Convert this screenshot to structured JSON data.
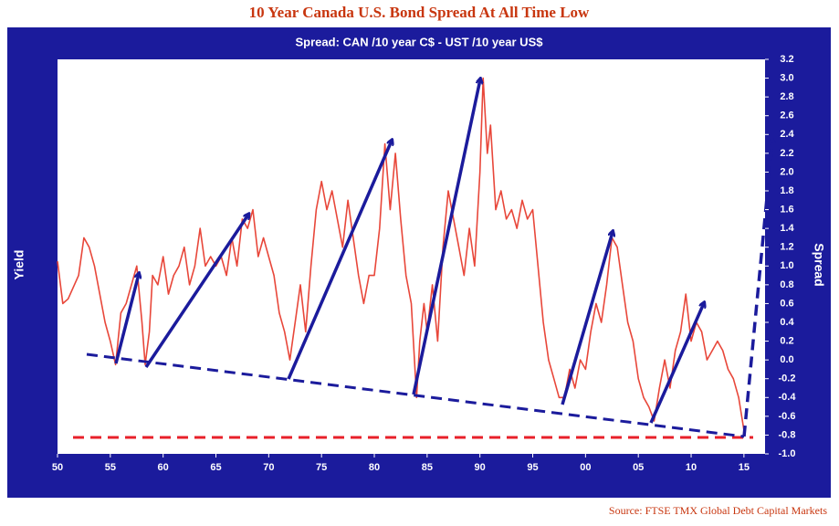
{
  "chart_data": {
    "type": "line",
    "title": "10 Year Canada U.S. Bond Spread At All Time Low",
    "subtitle": "Spread: CAN /10 year C$  -  UST /10 year US$",
    "y_label": "Yield",
    "y2_label": "Spread",
    "source": "Source: FTSE TMX Global Debt Capital Markets",
    "x": [
      1950,
      1950.5,
      1951,
      1952,
      1952.5,
      1953,
      1953.5,
      1954,
      1954.5,
      1955,
      1955.5,
      1956,
      1956.5,
      1957,
      1957.5,
      1958,
      1958.3,
      1958.7,
      1959,
      1959.5,
      1960,
      1960.5,
      1961,
      1961.5,
      1962,
      1962.5,
      1963,
      1963.5,
      1964,
      1964.5,
      1965,
      1965.5,
      1966,
      1966.5,
      1967,
      1967.5,
      1968,
      1968.5,
      1969,
      1969.5,
      1970,
      1970.5,
      1971,
      1971.5,
      1972,
      1972.5,
      1973,
      1973.5,
      1974,
      1974.5,
      1975,
      1975.5,
      1976,
      1976.5,
      1977,
      1977.5,
      1978,
      1978.5,
      1979,
      1979.5,
      1980,
      1980.5,
      1981,
      1981.5,
      1982,
      1982.5,
      1983,
      1983.5,
      1984,
      1984.3,
      1984.7,
      1985,
      1985.5,
      1986,
      1986.5,
      1987,
      1987.5,
      1988,
      1988.5,
      1989,
      1989.5,
      1990,
      1990.3,
      1990.7,
      1991,
      1991.5,
      1992,
      1992.5,
      1993,
      1993.5,
      1994,
      1994.5,
      1995,
      1995.5,
      1996,
      1996.5,
      1997,
      1997.5,
      1998,
      1998.5,
      1999,
      1999.5,
      2000,
      2000.5,
      2001,
      2001.5,
      2002,
      2002.5,
      2003,
      2003.5,
      2004,
      2004.5,
      2005,
      2005.5,
      2006,
      2006.5,
      2007,
      2007.5,
      2008,
      2008.5,
      2009,
      2009.5,
      2010,
      2010.5,
      2011,
      2011.5,
      2012,
      2012.5,
      2013,
      2013.5,
      2014,
      2014.5,
      2015
    ],
    "series": [
      {
        "name": "Spread",
        "color": "#e8473a",
        "values": [
          1.05,
          0.6,
          0.65,
          0.9,
          1.3,
          1.2,
          1.0,
          0.7,
          0.4,
          0.2,
          -0.05,
          0.5,
          0.6,
          0.8,
          1.0,
          0.4,
          -0.05,
          0.3,
          0.9,
          0.8,
          1.1,
          0.7,
          0.9,
          1.0,
          1.2,
          0.8,
          1.0,
          1.4,
          1.0,
          1.1,
          1.0,
          1.1,
          0.9,
          1.3,
          1.0,
          1.5,
          1.4,
          1.6,
          1.1,
          1.3,
          1.1,
          0.9,
          0.5,
          0.3,
          0.0,
          0.4,
          0.8,
          0.3,
          1.0,
          1.6,
          1.9,
          1.6,
          1.8,
          1.5,
          1.2,
          1.7,
          1.3,
          0.9,
          0.6,
          0.9,
          0.9,
          1.4,
          2.3,
          1.6,
          2.2,
          1.5,
          0.9,
          0.6,
          -0.4,
          0.2,
          0.6,
          0.3,
          0.8,
          0.2,
          1.2,
          1.8,
          1.5,
          1.2,
          0.9,
          1.4,
          1.0,
          2.0,
          3.0,
          2.2,
          2.5,
          1.6,
          1.8,
          1.5,
          1.6,
          1.4,
          1.7,
          1.5,
          1.6,
          1.0,
          0.4,
          0.0,
          -0.2,
          -0.4,
          -0.4,
          -0.1,
          -0.3,
          0.0,
          -0.1,
          0.3,
          0.6,
          0.4,
          0.8,
          1.3,
          1.2,
          0.8,
          0.4,
          0.2,
          -0.2,
          -0.4,
          -0.5,
          -0.65,
          -0.3,
          0.0,
          -0.3,
          0.1,
          0.3,
          0.7,
          0.2,
          0.4,
          0.3,
          0.0,
          0.1,
          0.2,
          0.1,
          -0.1,
          -0.2,
          -0.4,
          -0.75
        ]
      }
    ],
    "xlim": [
      1950,
      2017
    ],
    "xticks": [
      {
        "value": 1950,
        "label": "50"
      },
      {
        "value": 1955,
        "label": "55"
      },
      {
        "value": 1960,
        "label": "60"
      },
      {
        "value": 1965,
        "label": "65"
      },
      {
        "value": 1970,
        "label": "70"
      },
      {
        "value": 1975,
        "label": "75"
      },
      {
        "value": 1980,
        "label": "80"
      },
      {
        "value": 1985,
        "label": "85"
      },
      {
        "value": 1990,
        "label": "90"
      },
      {
        "value": 1995,
        "label": "95"
      },
      {
        "value": 2000,
        "label": "00"
      },
      {
        "value": 2005,
        "label": "05"
      },
      {
        "value": 2010,
        "label": "10"
      },
      {
        "value": 2015,
        "label": "15"
      }
    ],
    "ylim": [
      -1.0,
      3.2
    ],
    "yticks": [
      {
        "value": -1.0,
        "label": "-1.0"
      },
      -0.8,
      -0.6,
      -0.4,
      -0.2,
      {
        "value": 0,
        "label": "0.0"
      },
      0.2,
      0.4,
      0.6,
      0.8,
      {
        "value": 1,
        "label": "1.0"
      },
      1.2,
      1.4,
      1.6,
      1.8,
      {
        "value": 2,
        "label": "2.0"
      },
      2.2,
      2.4,
      2.6,
      2.8,
      {
        "value": 3,
        "label": "3.0"
      },
      3.2
    ],
    "y_axis_side": "right",
    "grid": false
  }
}
